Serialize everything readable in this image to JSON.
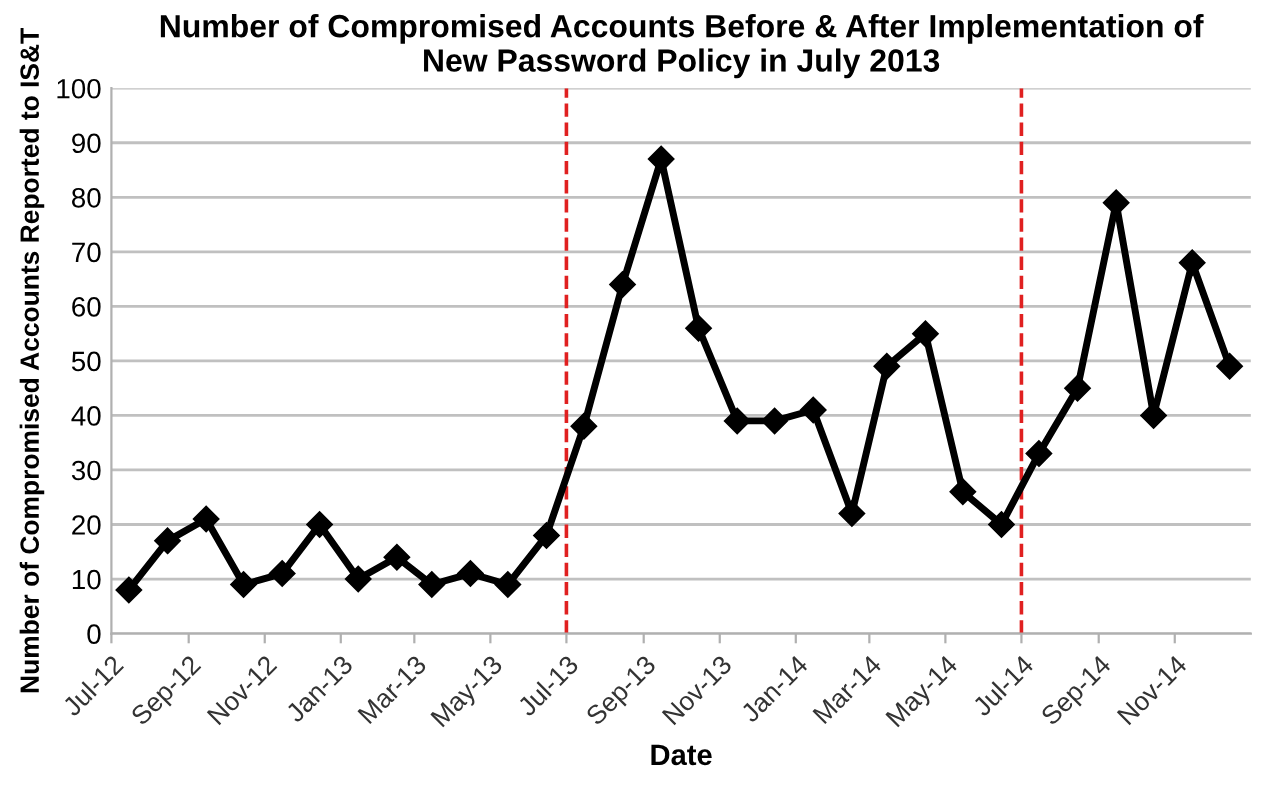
{
  "chart_data": {
    "type": "line",
    "title": "Number of Compromised Accounts Before & After Implementation of\nNew Password Policy in July 2013",
    "xlabel": "Date",
    "ylabel": "Number of Compromised Accounts Reported to IS&T",
    "x": [
      "2012-07-15",
      "2012-08-15",
      "2012-09-15",
      "2012-10-15",
      "2012-11-15",
      "2012-12-15",
      "2013-01-15",
      "2013-02-15",
      "2013-03-15",
      "2013-04-15",
      "2013-05-15",
      "2013-06-15",
      "2013-07-15",
      "2013-08-15",
      "2013-09-15",
      "2013-10-15",
      "2013-11-15",
      "2013-12-15",
      "2014-01-15",
      "2014-02-15",
      "2014-03-15",
      "2014-04-15",
      "2014-05-15",
      "2014-06-15",
      "2014-07-15",
      "2014-08-15",
      "2014-09-15",
      "2014-10-15",
      "2014-11-15",
      "2014-12-15"
    ],
    "series": [
      {
        "color": "#000000",
        "values": [
          8,
          17,
          21,
          9,
          11,
          20,
          10,
          14,
          9,
          11,
          9,
          18,
          38,
          64,
          87,
          56,
          39,
          39,
          41,
          22,
          49,
          55,
          26,
          20,
          33,
          45,
          79,
          40,
          68,
          49
        ]
      }
    ],
    "xlim": [
      "2012-07-01",
      "2015-01-01"
    ],
    "xticks": [
      {
        "value": "2012-07-01",
        "label": "Jul-12"
      },
      {
        "value": "2012-09-01",
        "label": "Sep-12"
      },
      {
        "value": "2012-11-01",
        "label": "Nov-12"
      },
      {
        "value": "2013-01-01",
        "label": "Jan-13"
      },
      {
        "value": "2013-03-01",
        "label": "Mar-13"
      },
      {
        "value": "2013-05-01",
        "label": "May-13"
      },
      {
        "value": "2013-07-01",
        "label": "Jul-13"
      },
      {
        "value": "2013-09-01",
        "label": "Sep-13"
      },
      {
        "value": "2013-11-01",
        "label": "Nov-13"
      },
      {
        "value": "2014-01-01",
        "label": "Jan-14"
      },
      {
        "value": "2014-03-01",
        "label": "Mar-14"
      },
      {
        "value": "2014-05-01",
        "label": "May-14"
      },
      {
        "value": "2014-07-01",
        "label": "Jul-14"
      },
      {
        "value": "2014-09-01",
        "label": "Sep-14"
      },
      {
        "value": "2014-11-01",
        "label": "Nov-14"
      }
    ],
    "ylim": [
      0,
      100
    ],
    "yticks": [
      0,
      10,
      20,
      30,
      40,
      50,
      60,
      70,
      80,
      90,
      100
    ],
    "ref_lines": [
      {
        "axis": "x",
        "value": "2013-07-01",
        "color": "#e02020",
        "line_style": "dashed"
      },
      {
        "axis": "x",
        "value": "2014-07-01",
        "color": "#e02020",
        "line_style": "dashed"
      }
    ],
    "grid": "y",
    "marker": "diamond",
    "line_style": "solid"
  }
}
